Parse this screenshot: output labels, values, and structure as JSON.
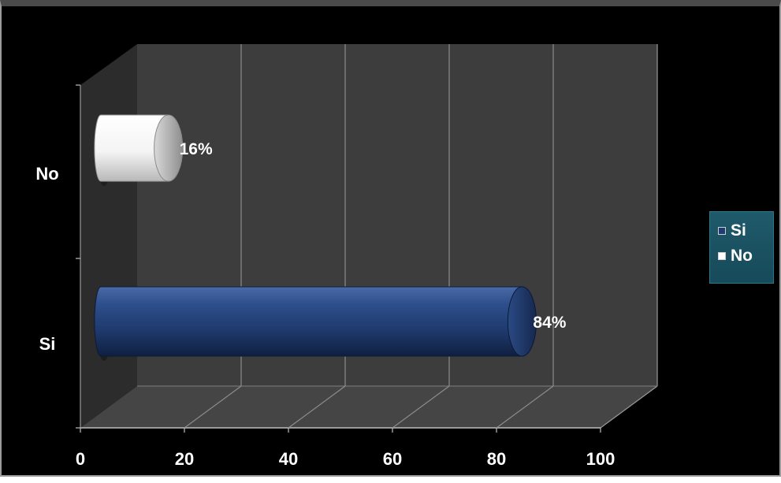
{
  "chart_data": {
    "type": "bar",
    "orientation": "horizontal",
    "style": "3d-cylinder",
    "categories": [
      "No",
      "Si"
    ],
    "values": [
      16,
      84
    ],
    "data_labels": [
      "16%",
      "84%"
    ],
    "xlim": [
      0,
      100
    ],
    "x_ticks": [
      "0",
      "20",
      "40",
      "60",
      "80",
      "100"
    ],
    "grid": true,
    "legend": {
      "placement": "right",
      "entries": [
        {
          "label": "Si",
          "color": "#1f3c73"
        },
        {
          "label": "No",
          "color": "#ffffff"
        }
      ]
    },
    "colors": {
      "No": "#f2f2f2",
      "Si": "#1f3c73",
      "background": "#000000",
      "plot_area": "#3a3a3a",
      "legend_background": "#1f5a6b"
    }
  }
}
